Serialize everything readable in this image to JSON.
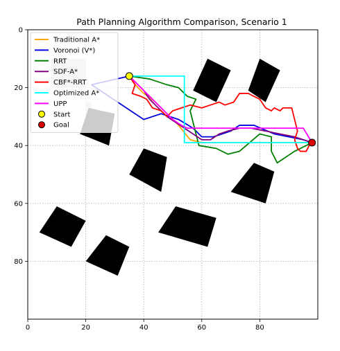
{
  "chart_data": {
    "type": "line",
    "title": "Path Planning Algorithm Comparison, Scenario 1",
    "xlabel": "",
    "ylabel": "",
    "xlim": [
      0,
      100
    ],
    "ylim": [
      100,
      0
    ],
    "y_inverted": true,
    "xticks": [
      0,
      20,
      40,
      60,
      80
    ],
    "yticks": [
      0,
      20,
      40,
      60,
      80
    ],
    "grid": true,
    "grid_style": "dotted",
    "legend_position": "upper-left",
    "obstacle_color": "#000000",
    "obstacles": [
      {
        "name": "obstacle-1",
        "polygon": [
          [
            62,
            10
          ],
          [
            70,
            14
          ],
          [
            65,
            25
          ],
          [
            57,
            21
          ]
        ]
      },
      {
        "name": "obstacle-2",
        "polygon": [
          [
            80,
            10
          ],
          [
            87,
            14
          ],
          [
            82,
            25
          ],
          [
            76,
            21
          ]
        ]
      },
      {
        "name": "obstacle-3",
        "polygon": [
          [
            8,
            10
          ],
          [
            20,
            10
          ],
          [
            20,
            20
          ],
          [
            8,
            20
          ]
        ],
        "color": "#d3d3d3"
      },
      {
        "name": "obstacle-4",
        "polygon": [
          [
            20,
            25
          ],
          [
            22,
            25
          ],
          [
            22,
            32
          ],
          [
            20,
            32
          ]
        ],
        "color": "#d3d3d3"
      },
      {
        "name": "obstacle-5",
        "polygon": [
          [
            21,
            27
          ],
          [
            30,
            29
          ],
          [
            28,
            40
          ],
          [
            18,
            36
          ]
        ]
      },
      {
        "name": "obstacle-6",
        "polygon": [
          [
            40,
            41
          ],
          [
            48,
            44
          ],
          [
            46,
            56
          ],
          [
            35,
            50
          ]
        ]
      },
      {
        "name": "obstacle-7",
        "polygon": [
          [
            78,
            46
          ],
          [
            85,
            49
          ],
          [
            82,
            60
          ],
          [
            70,
            56
          ]
        ]
      },
      {
        "name": "obstacle-8",
        "polygon": [
          [
            10,
            61
          ],
          [
            20,
            66
          ],
          [
            15,
            75
          ],
          [
            4,
            70
          ]
        ]
      },
      {
        "name": "obstacle-9",
        "polygon": [
          [
            51,
            61
          ],
          [
            65,
            65
          ],
          [
            62,
            75
          ],
          [
            45,
            70
          ]
        ]
      },
      {
        "name": "obstacle-10",
        "polygon": [
          [
            27,
            71
          ],
          [
            35,
            75
          ],
          [
            31,
            85
          ],
          [
            20,
            80
          ]
        ]
      }
    ],
    "series": [
      {
        "name": "Traditional A*",
        "color": "#ffa500",
        "points": [
          [
            35,
            16
          ],
          [
            37,
            19
          ],
          [
            40,
            22
          ],
          [
            44,
            25
          ],
          [
            48,
            29
          ],
          [
            52,
            33
          ],
          [
            56,
            38
          ],
          [
            60,
            39
          ],
          [
            70,
            39
          ],
          [
            80,
            39
          ],
          [
            90,
            39
          ],
          [
            98,
            39
          ]
        ]
      },
      {
        "name": "Voronoi (V*)",
        "color": "#0000dd",
        "points": [
          [
            35,
            16
          ],
          [
            22,
            19
          ],
          [
            40,
            31
          ],
          [
            46,
            29
          ],
          [
            52,
            31
          ],
          [
            57,
            34
          ],
          [
            60,
            37
          ],
          [
            64,
            37
          ],
          [
            70,
            35
          ],
          [
            73,
            33
          ],
          [
            78,
            33
          ],
          [
            85,
            36
          ],
          [
            90,
            37
          ],
          [
            95,
            38
          ],
          [
            98,
            39
          ]
        ]
      },
      {
        "name": "RRT",
        "color": "#008000",
        "points": [
          [
            35,
            16
          ],
          [
            42,
            17
          ],
          [
            48,
            19
          ],
          [
            52,
            20
          ],
          [
            55,
            23
          ],
          [
            58,
            24
          ],
          [
            56,
            28
          ],
          [
            57,
            32
          ],
          [
            59,
            40
          ],
          [
            65,
            41
          ],
          [
            69,
            43
          ],
          [
            73,
            42
          ],
          [
            80,
            36
          ],
          [
            84,
            37
          ],
          [
            84,
            42
          ],
          [
            86,
            46
          ],
          [
            92,
            42
          ],
          [
            98,
            39
          ]
        ]
      },
      {
        "name": "SDF-A*",
        "color": "#800080",
        "points": [
          [
            35,
            16
          ],
          [
            37,
            18
          ],
          [
            40,
            21
          ],
          [
            42,
            24
          ],
          [
            45,
            27
          ],
          [
            48,
            30
          ],
          [
            51,
            32
          ],
          [
            54,
            34
          ],
          [
            57,
            36
          ],
          [
            60,
            38
          ],
          [
            63,
            38
          ],
          [
            66,
            36
          ],
          [
            69,
            35
          ],
          [
            73,
            34
          ],
          [
            77,
            34
          ],
          [
            82,
            35
          ],
          [
            87,
            36
          ],
          [
            92,
            37
          ],
          [
            98,
            39
          ]
        ]
      },
      {
        "name": "CBF*-RRT",
        "color": "#ff0000",
        "points": [
          [
            35,
            16
          ],
          [
            37,
            19
          ],
          [
            36,
            22
          ],
          [
            39,
            23
          ],
          [
            41,
            24
          ],
          [
            43,
            27
          ],
          [
            46,
            28
          ],
          [
            48,
            30
          ],
          [
            50,
            28
          ],
          [
            53,
            27
          ],
          [
            56,
            26
          ],
          [
            60,
            27
          ],
          [
            63,
            26
          ],
          [
            66,
            25
          ],
          [
            68,
            26
          ],
          [
            71,
            25
          ],
          [
            73,
            22
          ],
          [
            76,
            22
          ],
          [
            78,
            23
          ],
          [
            80,
            24
          ],
          [
            82,
            27
          ],
          [
            84,
            28
          ],
          [
            85,
            27
          ],
          [
            87,
            28
          ],
          [
            88,
            27
          ],
          [
            91,
            27
          ],
          [
            92,
            31
          ],
          [
            93,
            35
          ],
          [
            92,
            38
          ],
          [
            93,
            41
          ],
          [
            94,
            42
          ],
          [
            96,
            42
          ],
          [
            97,
            40
          ],
          [
            98,
            39
          ]
        ]
      },
      {
        "name": "Optimized A*",
        "color": "#00ffff",
        "points": [
          [
            35,
            16
          ],
          [
            54,
            16
          ],
          [
            54,
            39
          ],
          [
            98,
            39
          ]
        ]
      },
      {
        "name": "UPP",
        "color": "#ff00ff",
        "points": [
          [
            35,
            16
          ],
          [
            37,
            18
          ],
          [
            40,
            21
          ],
          [
            43,
            24
          ],
          [
            46,
            27
          ],
          [
            48,
            29
          ],
          [
            50,
            31
          ],
          [
            53,
            33
          ],
          [
            55,
            34
          ],
          [
            60,
            34
          ],
          [
            95,
            34
          ],
          [
            98,
            39
          ]
        ]
      }
    ],
    "markers": [
      {
        "name": "Start",
        "x": 35,
        "y": 16,
        "color": "#ffff00"
      },
      {
        "name": "Goal",
        "x": 98,
        "y": 39,
        "color": "#dd0000"
      }
    ]
  }
}
